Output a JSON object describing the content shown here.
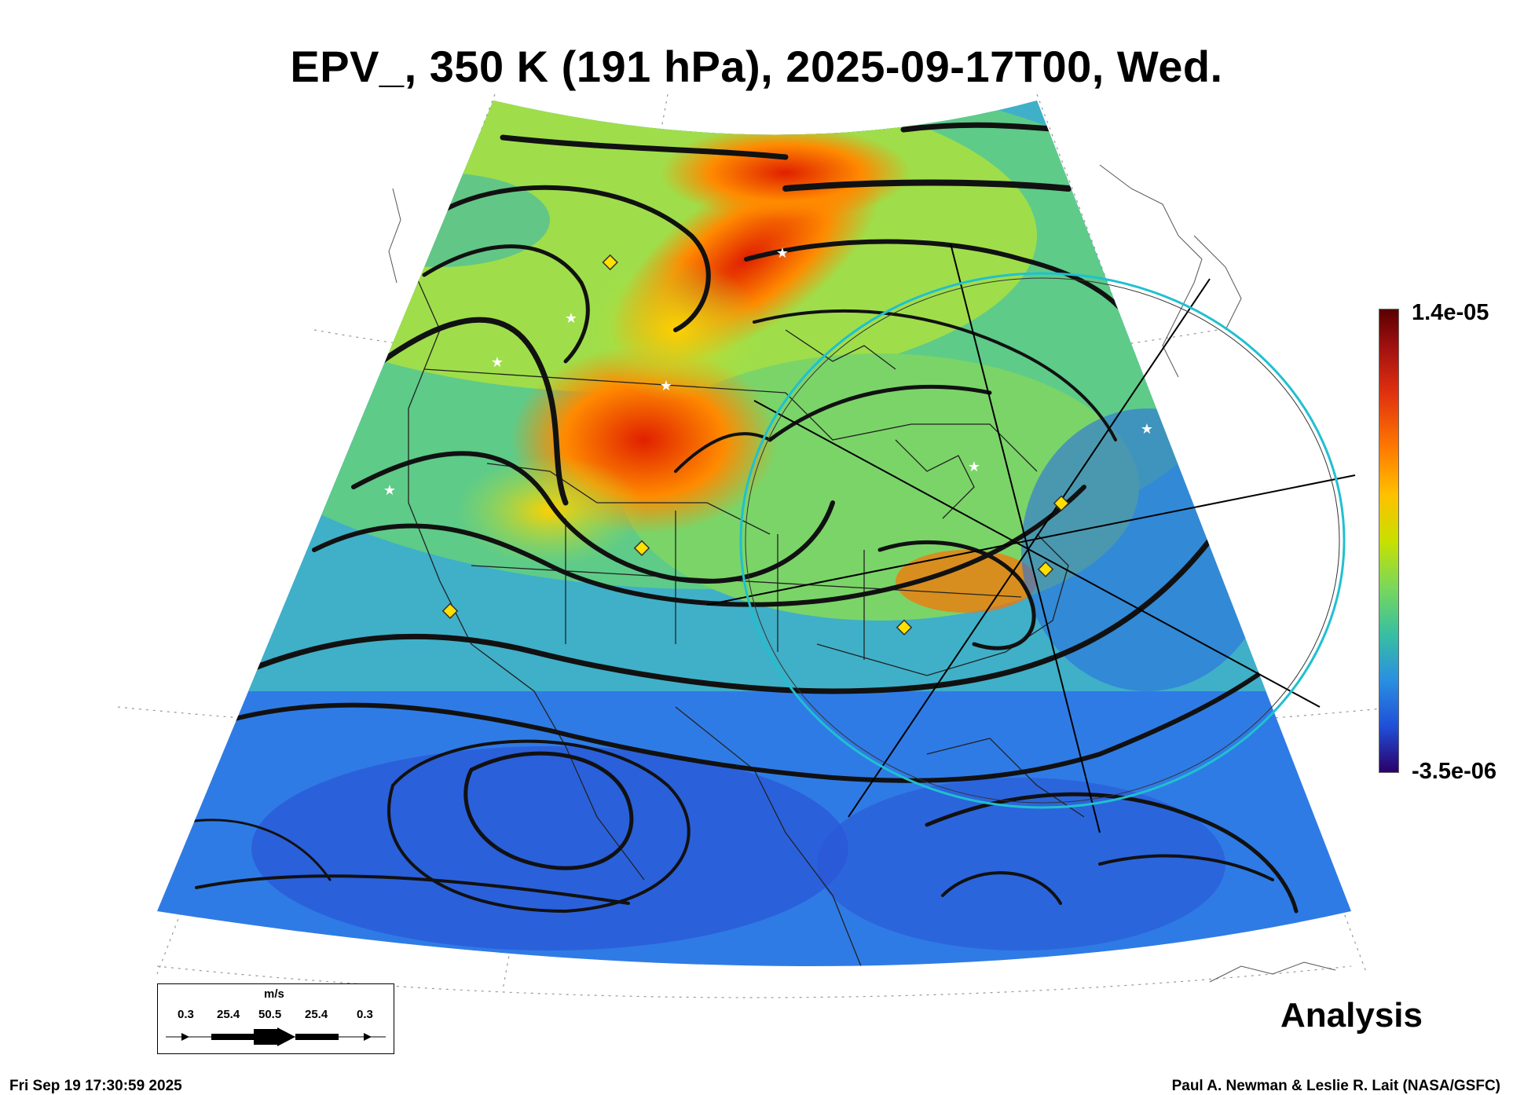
{
  "title": "EPV_, 350 K (191 hPa), 2025-09-17T00, Wed.",
  "colorbar": {
    "max_label": "1.4e-05",
    "min_label": "-3.5e-06",
    "colors": [
      "#5a0000",
      "#e03010",
      "#ffc000",
      "#7ad85a",
      "#2a90e0",
      "#2a006a"
    ]
  },
  "legend": {
    "unit": "m/s",
    "values": [
      "0.3",
      "25.4",
      "50.5",
      "25.4",
      "0.3"
    ]
  },
  "analysis_label": "Analysis",
  "timestamp": "Fri Sep 19 17:30:59 2025",
  "credit": "Paul A. Newman & Leslie R. Lait (NASA/GSFC)",
  "markers": {
    "diamond_color": "#ffe000",
    "star_color": "#ffffff",
    "circle_color": "#20c0d0"
  }
}
